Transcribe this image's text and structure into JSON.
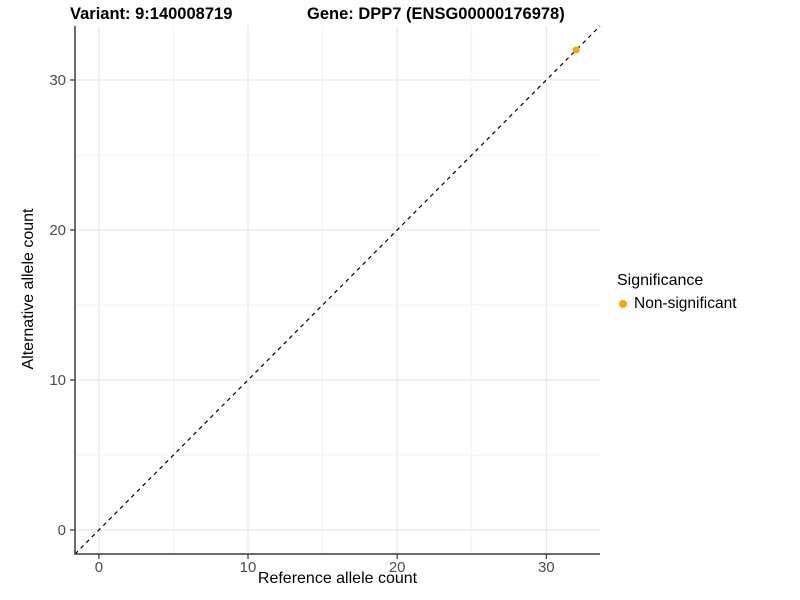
{
  "header": {
    "variant_title": "Variant: 9:140008719",
    "gene_title": "Gene: DPP7 (ENSG00000176978)"
  },
  "legend": {
    "title": "Significance",
    "items": [
      {
        "label": "Non-significant",
        "color": "#FFA500",
        "marker": "circle-icon"
      }
    ]
  },
  "chart_data": {
    "type": "scatter",
    "title": "",
    "xlabel": "Reference allele count",
    "ylabel": "Alternative allele count",
    "xlim": [
      -1.6,
      33.6
    ],
    "ylim": [
      -1.6,
      33.6
    ],
    "x_ticks": [
      0,
      10,
      20,
      30
    ],
    "y_ticks": [
      0,
      10,
      20,
      30
    ],
    "x_minor_ticks": [
      5,
      15,
      25
    ],
    "y_minor_ticks": [
      5,
      15,
      25
    ],
    "grid": "major+minor",
    "legend_position": "right",
    "series": [
      {
        "name": "Non-significant",
        "color": "#FFA500",
        "points": [
          [
            32,
            32
          ]
        ],
        "point_radius_px": 3.5
      }
    ],
    "reference_line": {
      "kind": "identity y=x",
      "style": "dashed",
      "color": "#000000"
    }
  },
  "colors": {
    "background": "#FFFFFF",
    "grid_major": "#E3E3E3",
    "grid_minor": "#F1F1F1",
    "axis_line": "#3C3C3C",
    "tick_mark": "#333333",
    "tick_label": "#4D4D4D",
    "point": "#FFA500"
  }
}
